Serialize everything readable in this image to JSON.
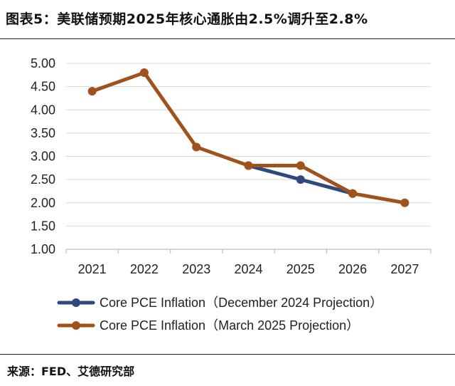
{
  "figure": {
    "title": "图表5：美联储预期2025年核心通胀由2.5%调升至2.8%",
    "source": "来源：FED、艾德研究部"
  },
  "chart_data": {
    "type": "line",
    "title": "图表5：美联储预期2025年核心通胀由2.5%调升至2.8%",
    "xlabel": "",
    "ylabel": "",
    "x": [
      "2021",
      "2022",
      "2023",
      "2024",
      "2025",
      "2026",
      "2027"
    ],
    "ylim": [
      1.0,
      5.0
    ],
    "yticks": [
      1.0,
      1.5,
      2.0,
      2.5,
      3.0,
      3.5,
      4.0,
      4.5,
      5.0
    ],
    "ytick_labels": [
      "1.00",
      "1.50",
      "2.00",
      "2.50",
      "3.00",
      "3.50",
      "4.00",
      "4.50",
      "5.00"
    ],
    "grid": true,
    "legend_position": "bottom",
    "series": [
      {
        "name": "Core PCE Inflation（December 2024 Projection）",
        "color": "#2e4a7d",
        "x": [
          "2024",
          "2025",
          "2026"
        ],
        "values": [
          2.8,
          2.5,
          2.2
        ]
      },
      {
        "name": "Core PCE Inflation（March 2025 Projection）",
        "color": "#a0521c",
        "x": [
          "2021",
          "2022",
          "2023",
          "2024",
          "2025",
          "2026",
          "2027"
        ],
        "values": [
          4.4,
          4.8,
          3.2,
          2.8,
          2.8,
          2.2,
          2.0
        ]
      }
    ]
  }
}
